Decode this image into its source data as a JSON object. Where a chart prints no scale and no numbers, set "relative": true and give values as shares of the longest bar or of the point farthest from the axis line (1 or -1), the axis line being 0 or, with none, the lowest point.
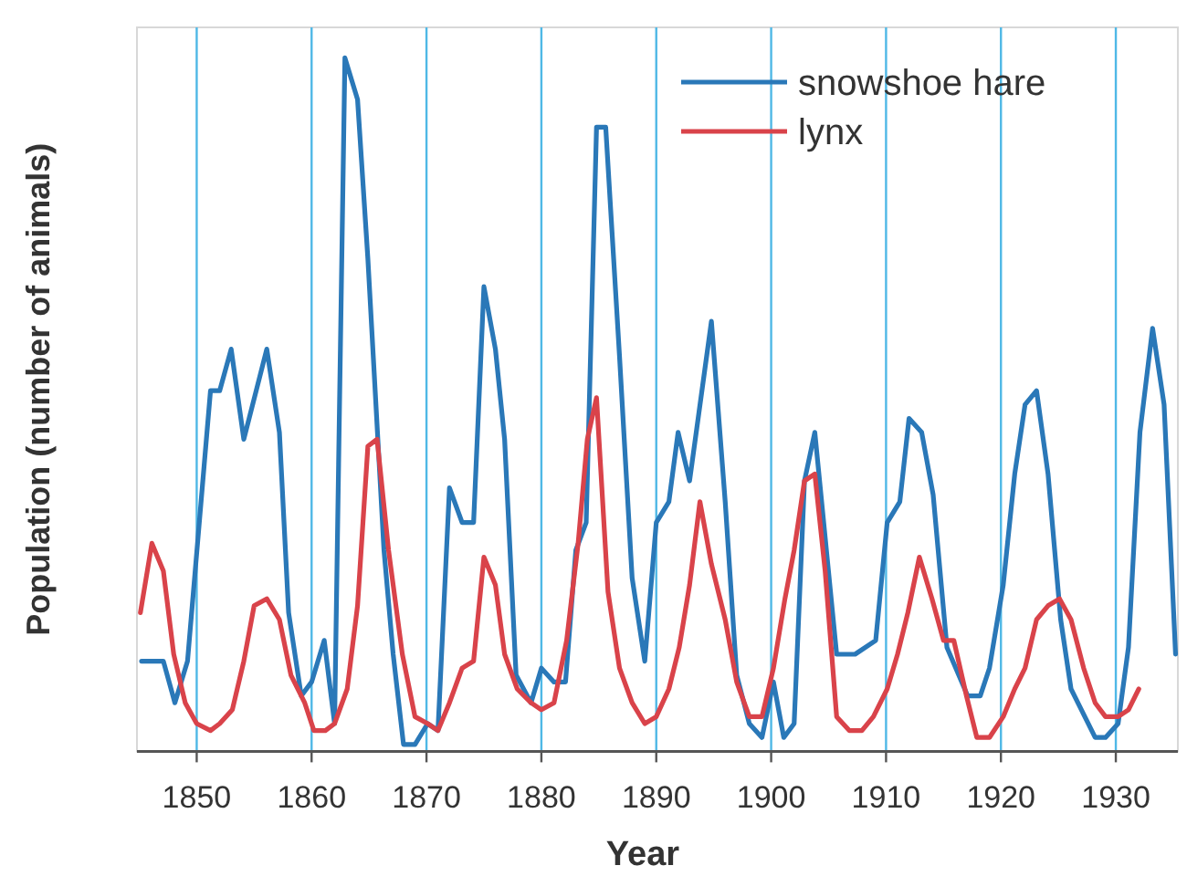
{
  "chart_data": {
    "type": "line",
    "relative": true,
    "xlabel": "Year",
    "ylabel": "Population (number of animals)",
    "xlim": [
      1844.8,
      1935.4
    ],
    "xticks": [
      1850,
      1860,
      1870,
      1880,
      1890,
      1900,
      1910,
      1920,
      1930
    ],
    "grid": "x",
    "legend": "top right",
    "marker": "none",
    "line_style": "solid",
    "series": [
      {
        "name": "snowshoe hare",
        "color": "#2a78b8",
        "x": [
          1845.2,
          1847.1,
          1848.1,
          1849.2,
          1851.2,
          1852,
          1853,
          1854.1,
          1856.1,
          1857.2,
          1858,
          1859.1,
          1860,
          1861.1,
          1862,
          1862.9,
          1864,
          1864.9,
          1866.3,
          1867.1,
          1868,
          1869,
          1870.1,
          1871,
          1872,
          1873.1,
          1874.1,
          1875,
          1876,
          1876.8,
          1877.8,
          1879.1,
          1880,
          1881.1,
          1882.1,
          1883,
          1883.9,
          1884.8,
          1885.6,
          1886.8,
          1887.9,
          1889,
          1890,
          1891.1,
          1891.9,
          1892.9,
          1894.8,
          1896,
          1897,
          1898.1,
          1899.2,
          1900.2,
          1901.1,
          1902,
          1902.9,
          1903.8,
          1905.7,
          1907.3,
          1909.1,
          1910.1,
          1911.2,
          1912,
          1913.1,
          1914.1,
          1915.3,
          1917.1,
          1918.2,
          1919,
          1920.2,
          1921.2,
          1922.1,
          1923.1,
          1924.1,
          1925.2,
          1926.1,
          1927.3,
          1928.2,
          1929.1,
          1930.2,
          1931.1,
          1932.1,
          1933.2,
          1934.2,
          1935.2
        ],
        "values": [
          0.13,
          0.13,
          0.07,
          0.13,
          0.52,
          0.52,
          0.58,
          0.45,
          0.58,
          0.46,
          0.2,
          0.08,
          0.1,
          0.16,
          0.04,
          1,
          0.94,
          0.71,
          0.29,
          0.14,
          0.01,
          0.01,
          0.04,
          0.03,
          0.38,
          0.33,
          0.33,
          0.67,
          0.58,
          0.45,
          0.11,
          0.07,
          0.12,
          0.1,
          0.1,
          0.29,
          0.33,
          0.9,
          0.9,
          0.57,
          0.25,
          0.13,
          0.33,
          0.36,
          0.46,
          0.39,
          0.62,
          0.36,
          0.11,
          0.04,
          0.02,
          0.1,
          0.02,
          0.04,
          0.39,
          0.46,
          0.14,
          0.14,
          0.16,
          0.33,
          0.36,
          0.48,
          0.46,
          0.37,
          0.15,
          0.08,
          0.08,
          0.12,
          0.24,
          0.4,
          0.5,
          0.52,
          0.4,
          0.19,
          0.09,
          0.05,
          0.02,
          0.02,
          0.04,
          0.15,
          0.46,
          0.61,
          0.5,
          0.14
        ]
      },
      {
        "name": "lynx",
        "color": "#d9434a",
        "x": [
          1845.1,
          1846.1,
          1847.1,
          1848,
          1849,
          1850,
          1851.2,
          1852,
          1853.1,
          1854.1,
          1855,
          1856.1,
          1857.2,
          1858.2,
          1859.4,
          1860.2,
          1861.2,
          1862,
          1863.1,
          1864,
          1864.9,
          1865.7,
          1866.7,
          1867.9,
          1869,
          1870.1,
          1871,
          1872,
          1873.1,
          1874.1,
          1875,
          1876,
          1876.8,
          1877.9,
          1879.1,
          1880,
          1881.1,
          1882.2,
          1883.2,
          1884,
          1884.8,
          1885.8,
          1886.8,
          1887.9,
          1889,
          1890,
          1891.1,
          1892,
          1892.9,
          1893.8,
          1894.8,
          1896,
          1897,
          1898.1,
          1899.2,
          1900.2,
          1901.2,
          1902,
          1902.9,
          1903.8,
          1904.7,
          1905.7,
          1906.8,
          1907.9,
          1908.9,
          1910.1,
          1911,
          1911.9,
          1912.9,
          1914,
          1915,
          1915.9,
          1917,
          1917.9,
          1919,
          1920.2,
          1921.2,
          1922.1,
          1923.1,
          1924.1,
          1925.1,
          1926.1,
          1927.2,
          1928.2,
          1929.1,
          1930.2,
          1931.1,
          1932
        ],
        "values": [
          0.2,
          0.3,
          0.26,
          0.14,
          0.07,
          0.04,
          0.03,
          0.04,
          0.06,
          0.13,
          0.21,
          0.22,
          0.19,
          0.11,
          0.07,
          0.03,
          0.03,
          0.04,
          0.09,
          0.21,
          0.44,
          0.45,
          0.29,
          0.14,
          0.05,
          0.04,
          0.03,
          0.07,
          0.12,
          0.13,
          0.28,
          0.24,
          0.14,
          0.09,
          0.07,
          0.06,
          0.07,
          0.16,
          0.3,
          0.45,
          0.51,
          0.23,
          0.12,
          0.07,
          0.04,
          0.05,
          0.09,
          0.15,
          0.24,
          0.36,
          0.27,
          0.19,
          0.1,
          0.05,
          0.05,
          0.12,
          0.22,
          0.29,
          0.39,
          0.4,
          0.26,
          0.05,
          0.03,
          0.03,
          0.05,
          0.09,
          0.14,
          0.2,
          0.28,
          0.22,
          0.16,
          0.16,
          0.08,
          0.02,
          0.02,
          0.05,
          0.09,
          0.12,
          0.19,
          0.21,
          0.22,
          0.19,
          0.12,
          0.07,
          0.05,
          0.05,
          0.06,
          0.09
        ]
      }
    ]
  }
}
